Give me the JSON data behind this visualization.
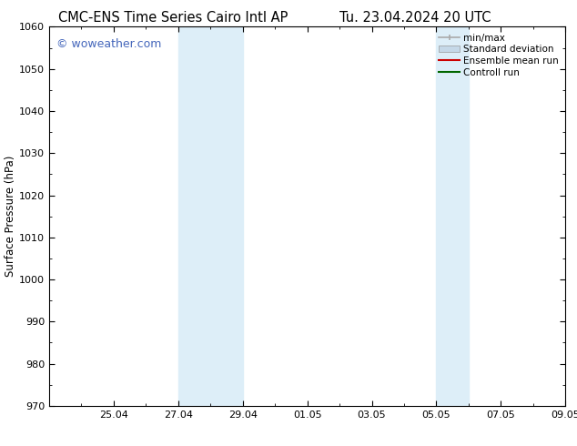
{
  "title_left": "CMC-ENS Time Series Cairo Intl AP",
  "title_right": "Tu. 23.04.2024 20 UTC",
  "ylabel": "Surface Pressure (hPa)",
  "ylim": [
    970,
    1060
  ],
  "yticks": [
    970,
    980,
    990,
    1000,
    1010,
    1020,
    1030,
    1040,
    1050,
    1060
  ],
  "xlim": [
    0,
    16
  ],
  "xtick_labels": [
    "25.04",
    "27.04",
    "29.04",
    "01.05",
    "03.05",
    "05.05",
    "07.05",
    "09.05"
  ],
  "xtick_positions": [
    2,
    4,
    6,
    8,
    10,
    12,
    14,
    16
  ],
  "shaded_bands": [
    {
      "x_start": 4,
      "x_end": 6
    },
    {
      "x_start": 12,
      "x_end": 13
    }
  ],
  "shaded_color": "#ddeef8",
  "background_color": "#ffffff",
  "watermark_text": "© woweather.com",
  "watermark_color": "#4466bb",
  "legend_entries": [
    {
      "label": "min/max",
      "color": "#aaaaaa",
      "lw": 1.2,
      "type": "minmax"
    },
    {
      "label": "Standard deviation",
      "color": "#c5d8e8",
      "lw": 6,
      "type": "band"
    },
    {
      "label": "Ensemble mean run",
      "color": "#cc0000",
      "lw": 1.5,
      "type": "line"
    },
    {
      "label": "Controll run",
      "color": "#006600",
      "lw": 1.5,
      "type": "line"
    }
  ],
  "title_fontsize": 10.5,
  "axis_label_fontsize": 8.5,
  "tick_fontsize": 8,
  "legend_fontsize": 7.5,
  "watermark_fontsize": 9
}
